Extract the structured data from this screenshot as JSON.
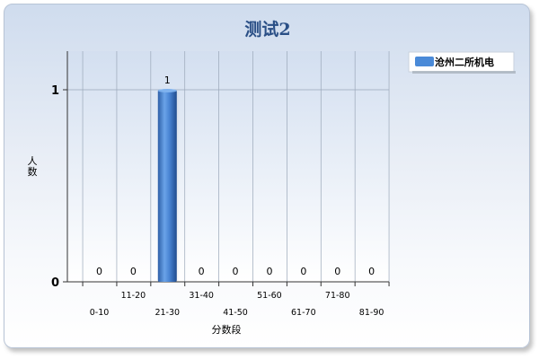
{
  "chart_data": {
    "type": "bar",
    "title": "测试2",
    "xlabel": "分数段",
    "ylabel": "人数",
    "categories": [
      "0-10",
      "11-20",
      "21-30",
      "31-40",
      "41-50",
      "51-60",
      "61-70",
      "71-80",
      "81-90"
    ],
    "series": [
      {
        "name": "沧州二所机电",
        "values": [
          0,
          0,
          1,
          0,
          0,
          0,
          0,
          0,
          0
        ],
        "color": "#4a8ad8"
      }
    ],
    "ylim": [
      0,
      1
    ],
    "yticks": [
      "0",
      "1"
    ],
    "grid": true,
    "legend_position": "top-right"
  }
}
